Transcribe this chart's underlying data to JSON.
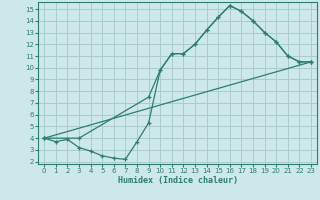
{
  "xlabel": "Humidex (Indice chaleur)",
  "bg_color": "#cce8e8",
  "grid_color": "#aacccc",
  "line_color": "#2e7d6e",
  "xlim": [
    -0.5,
    23.5
  ],
  "ylim": [
    1.8,
    15.6
  ],
  "xticks": [
    0,
    1,
    2,
    3,
    4,
    5,
    6,
    7,
    8,
    9,
    10,
    11,
    12,
    13,
    14,
    15,
    16,
    17,
    18,
    19,
    20,
    21,
    22,
    23
  ],
  "yticks": [
    2,
    3,
    4,
    5,
    6,
    7,
    8,
    9,
    10,
    11,
    12,
    13,
    14,
    15
  ],
  "line1_x": [
    0,
    1,
    2,
    3,
    4,
    5,
    6,
    7,
    8,
    9,
    10,
    11,
    12,
    13,
    14,
    15,
    16,
    17,
    18,
    19,
    20,
    21,
    22,
    23
  ],
  "line1_y": [
    4.0,
    3.7,
    3.9,
    3.2,
    2.9,
    2.5,
    2.3,
    2.2,
    3.7,
    5.3,
    9.8,
    11.2,
    11.2,
    12.0,
    13.2,
    14.3,
    15.3,
    14.8,
    14.0,
    13.0,
    12.2,
    11.0,
    10.5,
    10.5
  ],
  "line2_x": [
    0,
    3,
    9,
    10,
    11,
    12,
    13,
    14,
    15,
    16,
    17,
    18,
    19,
    20,
    21,
    22,
    23
  ],
  "line2_y": [
    4.0,
    4.0,
    7.5,
    9.8,
    11.2,
    11.2,
    12.0,
    13.2,
    14.3,
    15.3,
    14.8,
    14.0,
    13.0,
    12.2,
    11.0,
    10.5,
    10.5
  ],
  "line3_x": [
    0,
    23
  ],
  "line3_y": [
    4.0,
    10.5
  ]
}
